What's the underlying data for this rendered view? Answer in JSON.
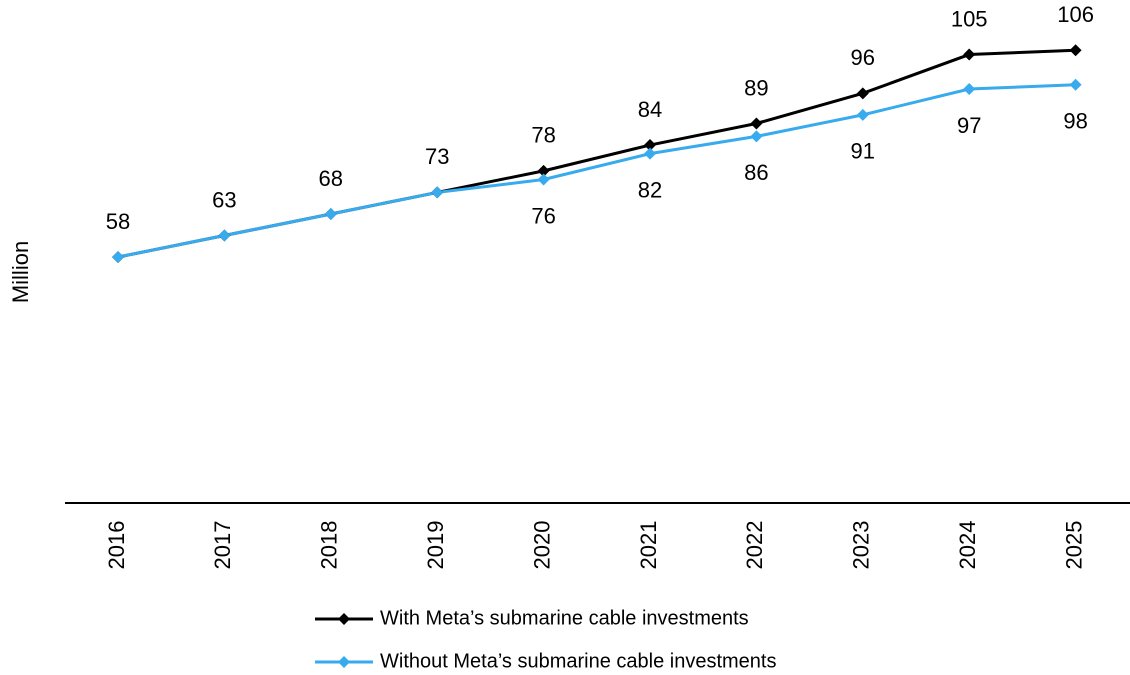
{
  "chart_data": {
    "type": "line",
    "y_label": "Million",
    "categories": [
      "2016",
      "2017",
      "2018",
      "2019",
      "2020",
      "2021",
      "2022",
      "2023",
      "2024",
      "2025"
    ],
    "series": [
      {
        "name": "With Meta’s submarine cable investments",
        "color": "#000000",
        "values": [
          58,
          63,
          68,
          73,
          78,
          84,
          89,
          96,
          105,
          106
        ]
      },
      {
        "name": "Without Meta’s submarine cable investments",
        "color": "#38aaee",
        "values": [
          58,
          63,
          68,
          73,
          76,
          82,
          86,
          91,
          97,
          98
        ]
      }
    ],
    "ylim": [
      0,
      110
    ],
    "grid": false
  }
}
